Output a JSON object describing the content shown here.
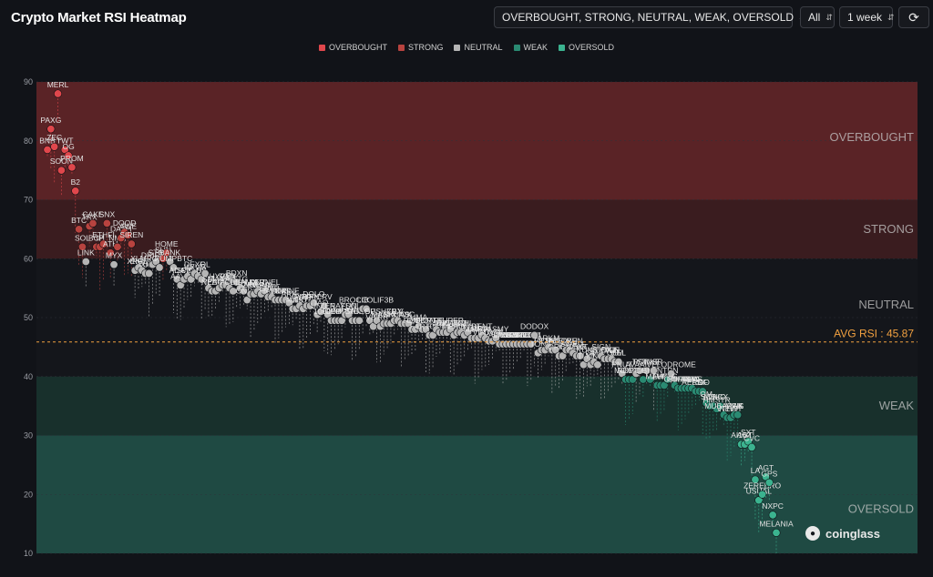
{
  "app": {
    "title": "Crypto Market RSI Heatmap",
    "filter_value": "OVERBOUGHT, STRONG, NEUTRAL, WEAK, OVERSOLD",
    "scope_value": "All",
    "period_value": "1 week",
    "refresh_icon": "refresh-icon",
    "brand": "coinglass"
  },
  "chart_data": {
    "type": "scatter",
    "title": "Crypto Market RSI Heatmap",
    "ylim": [
      10,
      90
    ],
    "yticks": [
      10,
      20,
      30,
      40,
      50,
      60,
      70,
      80,
      90
    ],
    "legend": [
      "OVERBOUGHT",
      "STRONG",
      "NEUTRAL",
      "WEAK",
      "OVERSOLD"
    ],
    "legend_position": "top-center",
    "zones": [
      {
        "name": "OVERBOUGHT",
        "from": 70,
        "to": 90,
        "color": "#5a2326"
      },
      {
        "name": "STRONG",
        "from": 60,
        "to": 70,
        "color": "#3a1c1f"
      },
      {
        "name": "NEUTRAL",
        "from": 40,
        "to": 60,
        "color": "#14161b"
      },
      {
        "name": "WEAK",
        "from": 30,
        "to": 40,
        "color": "#18302c"
      },
      {
        "name": "OVERSOLD",
        "from": 10,
        "to": 30,
        "color": "#1f4a43"
      }
    ],
    "colors": {
      "overbought": "#e0474c",
      "strong": "#b8433f",
      "neutral": "#b5b5b5",
      "weak": "#2a8a72",
      "oversold": "#3bb38f"
    },
    "avg_rsi": 45.87,
    "avg_label": "AVG RSI : 45.87",
    "points": [
      {
        "name": "BNB",
        "rsi": 78.5
      },
      {
        "name": "PAXG",
        "rsi": 82
      },
      {
        "name": "ZEC",
        "rsi": 79
      },
      {
        "name": "MERL",
        "rsi": 88
      },
      {
        "name": "SOON",
        "rsi": 75
      },
      {
        "name": "TWT",
        "rsi": 78.5
      },
      {
        "name": "OG",
        "rsi": 77.5
      },
      {
        "name": "PROM",
        "rsi": 75.5
      },
      {
        "name": "B2",
        "rsi": 71.5
      },
      {
        "name": "BTC",
        "rsi": 65
      },
      {
        "name": "SOL",
        "rsi": 62
      },
      {
        "name": "LINK",
        "rsi": 59.5
      },
      {
        "name": "TRX",
        "rsi": 65.5
      },
      {
        "name": "CAKE",
        "rsi": 66
      },
      {
        "name": "BCH",
        "rsi": 62
      },
      {
        "name": "IP",
        "rsi": 62
      },
      {
        "name": "ETHFI",
        "rsi": 62.5
      },
      {
        "name": "SNX",
        "rsi": 66
      },
      {
        "name": "ATH",
        "rsi": 61
      },
      {
        "name": "MYX",
        "rsi": 59
      },
      {
        "name": "NMR",
        "rsi": 62
      },
      {
        "name": "DASH",
        "rsi": 63.5
      },
      {
        "name": "DOOD",
        "rsi": 64.5
      },
      {
        "name": "AWE",
        "rsi": 64
      },
      {
        "name": "SIREN",
        "rsi": 62.5
      },
      {
        "name": "XRP",
        "rsi": 58
      },
      {
        "name": "XLM",
        "rsi": 58.5
      },
      {
        "name": "EIGEN",
        "rsi": 58
      },
      {
        "name": "TUT",
        "rsi": 57.5
      },
      {
        "name": "XMR",
        "rsi": 57.5
      },
      {
        "name": "DRIFT",
        "rsi": 59
      },
      {
        "name": "STO",
        "rsi": 59.5
      },
      {
        "name": "PORT3",
        "rsi": 58.5
      },
      {
        "name": "SUN",
        "rsi": 60
      },
      {
        "name": "HOME",
        "rsi": 61
      },
      {
        "name": "BANK",
        "rsi": 59.5
      },
      {
        "name": "PUMPBTC",
        "rsi": 58.5
      },
      {
        "name": "ADA",
        "rsi": 56.5
      },
      {
        "name": "AAVE",
        "rsi": 55.5
      },
      {
        "name": "SPX",
        "rsi": 56.5
      },
      {
        "name": "W",
        "rsi": 57
      },
      {
        "name": "CELO",
        "rsi": 56.5
      },
      {
        "name": "DEXE",
        "rsi": 57.5
      },
      {
        "name": "XVG",
        "rsi": 57
      },
      {
        "name": "BB",
        "rsi": 56.5
      },
      {
        "name": "OL",
        "rsi": 57.5
      },
      {
        "name": "SUI",
        "rsi": 55
      },
      {
        "name": "NEAR",
        "rsi": 54.5
      },
      {
        "name": "LDO",
        "rsi": 54.5
      },
      {
        "name": "MANA",
        "rsi": 55
      },
      {
        "name": "HYPER",
        "rsi": 55.5
      },
      {
        "name": "SQD",
        "rsi": 55.5
      },
      {
        "name": "BNT",
        "rsi": 55
      },
      {
        "name": "FORTH",
        "rsi": 54.5
      },
      {
        "name": "BDXN",
        "rsi": 56
      },
      {
        "name": "STG",
        "rsi": 55
      },
      {
        "name": "BEAMX",
        "rsi": 54.5
      },
      {
        "name": "ONDO",
        "rsi": 53
      },
      {
        "name": "ZRO",
        "rsi": 54
      },
      {
        "name": "SAHARA",
        "rsi": 54
      },
      {
        "name": "QNT",
        "rsi": 54.5
      },
      {
        "name": "HUMA",
        "rsi": 54
      },
      {
        "name": "KERNEL",
        "rsi": 54.5
      },
      {
        "name": "EPIC",
        "rsi": 53.5
      },
      {
        "name": "SFP",
        "rsi": 53.5
      },
      {
        "name": "HAEDAL",
        "rsi": 53
      },
      {
        "name": "CTK",
        "rsi": 53
      },
      {
        "name": "XVS",
        "rsi": 53
      },
      {
        "name": "ALPINE",
        "rsi": 53
      },
      {
        "name": "ARK",
        "rsi": 52.5
      },
      {
        "name": "INJ",
        "rsi": 51.5
      },
      {
        "name": "ALGO",
        "rsi": 51.5
      },
      {
        "name": "CYB",
        "rsi": 52
      },
      {
        "name": "ASTR",
        "rsi": 51.5
      },
      {
        "name": "PIPPIN",
        "rsi": 52
      },
      {
        "name": "YFI",
        "rsi": 52
      },
      {
        "name": "DOLO",
        "rsi": 52.5
      },
      {
        "name": "UNI",
        "rsi": 50.5
      },
      {
        "name": "TAO",
        "rsi": 51
      },
      {
        "name": "CRV",
        "rsi": 52
      },
      {
        "name": "ZEN",
        "rsi": 50.5
      },
      {
        "name": "1000SHIB",
        "rsi": 49.5
      },
      {
        "name": "HIPPO",
        "rsi": 49.5
      },
      {
        "name": "CYBER",
        "rsi": 49.5
      },
      {
        "name": "OTUM",
        "rsi": 49.5
      },
      {
        "name": "RAYSOL",
        "rsi": 50.5
      },
      {
        "name": "FUN",
        "rsi": 50.5
      },
      {
        "name": "BAT",
        "rsi": 49.5
      },
      {
        "name": "RLC",
        "rsi": 49.5
      },
      {
        "name": "BR",
        "rsi": 49.5
      },
      {
        "name": "LIB",
        "rsi": 51.5
      },
      {
        "name": "BROCCOLIF3B",
        "rsi": 51.5
      },
      {
        "name": "OP",
        "rsi": 49.5
      },
      {
        "name": "VET",
        "rsi": 48.5
      },
      {
        "name": "SUSHI",
        "rsi": 49.5
      },
      {
        "name": "TRB",
        "rsi": 48.5
      },
      {
        "name": "MAGIC",
        "rsi": 49
      },
      {
        "name": "IOTX",
        "rsi": 49
      },
      {
        "name": "SKL",
        "rsi": 49
      },
      {
        "name": "ZRX",
        "rsi": 49.5
      },
      {
        "name": "ILV",
        "rsi": 49.5
      },
      {
        "name": "GAS",
        "rsi": 49
      },
      {
        "name": "ICX",
        "rsi": 49
      },
      {
        "name": "VIC",
        "rsi": 49
      },
      {
        "name": "REQ",
        "rsi": 48
      },
      {
        "name": "ONE",
        "rsi": 48
      },
      {
        "name": "UMA",
        "rsi": 48.5
      },
      {
        "name": "FIO",
        "rsi": 48
      },
      {
        "name": "SORT",
        "rsi": 48
      },
      {
        "name": "FARTCOIN",
        "rsi": 47
      },
      {
        "name": "FIL",
        "rsi": 47
      },
      {
        "name": "APE",
        "rsi": 48
      },
      {
        "name": "JUP",
        "rsi": 47.5
      },
      {
        "name": "AIO",
        "rsi": 47.5
      },
      {
        "name": "THETA",
        "rsi": 47.5
      },
      {
        "name": "SUPER",
        "rsi": 48
      },
      {
        "name": "MEME",
        "rsi": 47
      },
      {
        "name": "WOO",
        "rsi": 47.5
      },
      {
        "name": "ACH",
        "rsi": 47.5
      },
      {
        "name": "PROMPT",
        "rsi": 47
      },
      {
        "name": "ZIL",
        "rsi": 47.5
      },
      {
        "name": "MAV",
        "rsi": 46.5
      },
      {
        "name": "LRC",
        "rsi": 46.5
      },
      {
        "name": "ONT",
        "rsi": 46.5
      },
      {
        "name": "DENT",
        "rsi": 47
      },
      {
        "name": "RPL",
        "rsi": 46.5
      },
      {
        "name": "VIRTUAL",
        "rsi": 46
      },
      {
        "name": "DYD",
        "rsi": 46
      },
      {
        "name": "JASMY",
        "rsi": 46.5
      },
      {
        "name": "ALICE",
        "rsi": 45.5
      },
      {
        "name": "AXL",
        "rsi": 45.5
      },
      {
        "name": "VANRY",
        "rsi": 45.5
      },
      {
        "name": "CKB",
        "rsi": 45.5
      },
      {
        "name": "GUN",
        "rsi": 45.5
      },
      {
        "name": "VOXEL",
        "rsi": 45.5
      },
      {
        "name": "PONT",
        "rsi": 45.5
      },
      {
        "name": "SPELL",
        "rsi": 45.5
      },
      {
        "name": "STEEM",
        "rsi": 45.5
      },
      {
        "name": "COS",
        "rsi": 45.5
      },
      {
        "name": "DODOX",
        "rsi": 47
      },
      {
        "name": "TON",
        "rsi": 44
      },
      {
        "name": "FET",
        "rsi": 44.5
      },
      {
        "name": "ICP",
        "rsi": 44.5
      },
      {
        "name": "ARKM",
        "rsi": 45
      },
      {
        "name": "REI",
        "rsi": 44.5
      },
      {
        "name": "ACE",
        "rsi": 44.5
      },
      {
        "name": "ORCA",
        "rsi": 43.5
      },
      {
        "name": "IQ",
        "rsi": 43.5
      },
      {
        "name": "AITOKEN",
        "rsi": 44.5
      },
      {
        "name": "TRU",
        "rsi": 44.5
      },
      {
        "name": "SWELL",
        "rsi": 44
      },
      {
        "name": "ONG",
        "rsi": 43.5
      },
      {
        "name": "OXT",
        "rsi": 43.5
      },
      {
        "name": "TIA",
        "rsi": 42
      },
      {
        "name": "RUNE",
        "rsi": 43
      },
      {
        "name": "IO",
        "rsi": 42
      },
      {
        "name": "GMT",
        "rsi": 42.5
      },
      {
        "name": "INIT",
        "rsi": 42
      },
      {
        "name": "SIGN",
        "rsi": 43.5
      },
      {
        "name": "COOKIE",
        "rsi": 43
      },
      {
        "name": "ENJ",
        "rsi": 43
      },
      {
        "name": "XCN",
        "rsi": 43
      },
      {
        "name": "GLM",
        "rsi": 42.5
      },
      {
        "name": "BEL",
        "rsi": 42.5
      },
      {
        "name": "PNUT",
        "rsi": 40.5
      },
      {
        "name": "MOVE",
        "rsi": 39.5
      },
      {
        "name": "A",
        "rsi": 39.5
      },
      {
        "name": "RESOLV",
        "rsi": 39.5
      },
      {
        "name": "AVAAI",
        "rsi": 40.5
      },
      {
        "name": "TST",
        "rsi": 41
      },
      {
        "name": "CATI",
        "rsi": 39.5
      },
      {
        "name": "PONKE",
        "rsi": 41
      },
      {
        "name": "BMT",
        "rsi": 39.5
      },
      {
        "name": "INSR",
        "rsi": 41
      },
      {
        "name": "MAVIA",
        "rsi": 38.5
      },
      {
        "name": "FHE",
        "rsi": 38.5
      },
      {
        "name": "LUMIA",
        "rsi": 38.5
      },
      {
        "name": "NTRN",
        "rsi": 39.5
      },
      {
        "name": "VELODROME",
        "rsi": 40.5
      },
      {
        "name": "G",
        "rsi": 38.5
      },
      {
        "name": "FORM",
        "rsi": 38
      },
      {
        "name": "GRIFFAIN",
        "rsi": 38
      },
      {
        "name": "SWARMS",
        "rsi": 38
      },
      {
        "name": "VVV",
        "rsi": 38
      },
      {
        "name": "PHA",
        "rsi": 38
      },
      {
        "name": "AERGO",
        "rsi": 37.5
      },
      {
        "name": "LSK",
        "rsi": 37.5
      },
      {
        "name": "DF",
        "rsi": 37.5
      },
      {
        "name": "OM",
        "rsi": 35.5
      },
      {
        "name": "ME",
        "rsi": 35
      },
      {
        "name": "SONIC",
        "rsi": 35
      },
      {
        "name": "HMSTR",
        "rsi": 34.5
      },
      {
        "name": "ACX",
        "rsi": 35
      },
      {
        "name": "MUBARAK",
        "rsi": 33.5
      },
      {
        "name": "VTHO",
        "rsi": 33
      },
      {
        "name": "NEWT",
        "rsi": 33
      },
      {
        "name": "MILK",
        "rsi": 33.5
      },
      {
        "name": "FIS",
        "rsi": 33.5
      },
      {
        "name": "AI16Z",
        "rsi": 28.5
      },
      {
        "name": "AGT",
        "rsi": 28.5
      },
      {
        "name": "SXT",
        "rsi": 29
      },
      {
        "name": "CVC",
        "rsi": 28
      },
      {
        "name": "LA",
        "rsi": 22.5
      },
      {
        "name": "USUAL",
        "rsi": 19
      },
      {
        "name": "ZEREBRO",
        "rsi": 20
      },
      {
        "name": "AGT",
        "rsi": 23
      },
      {
        "name": "GPS",
        "rsi": 22
      },
      {
        "name": "NXPC",
        "rsi": 16.5
      },
      {
        "name": "MELANIA",
        "rsi": 13.5
      }
    ]
  }
}
